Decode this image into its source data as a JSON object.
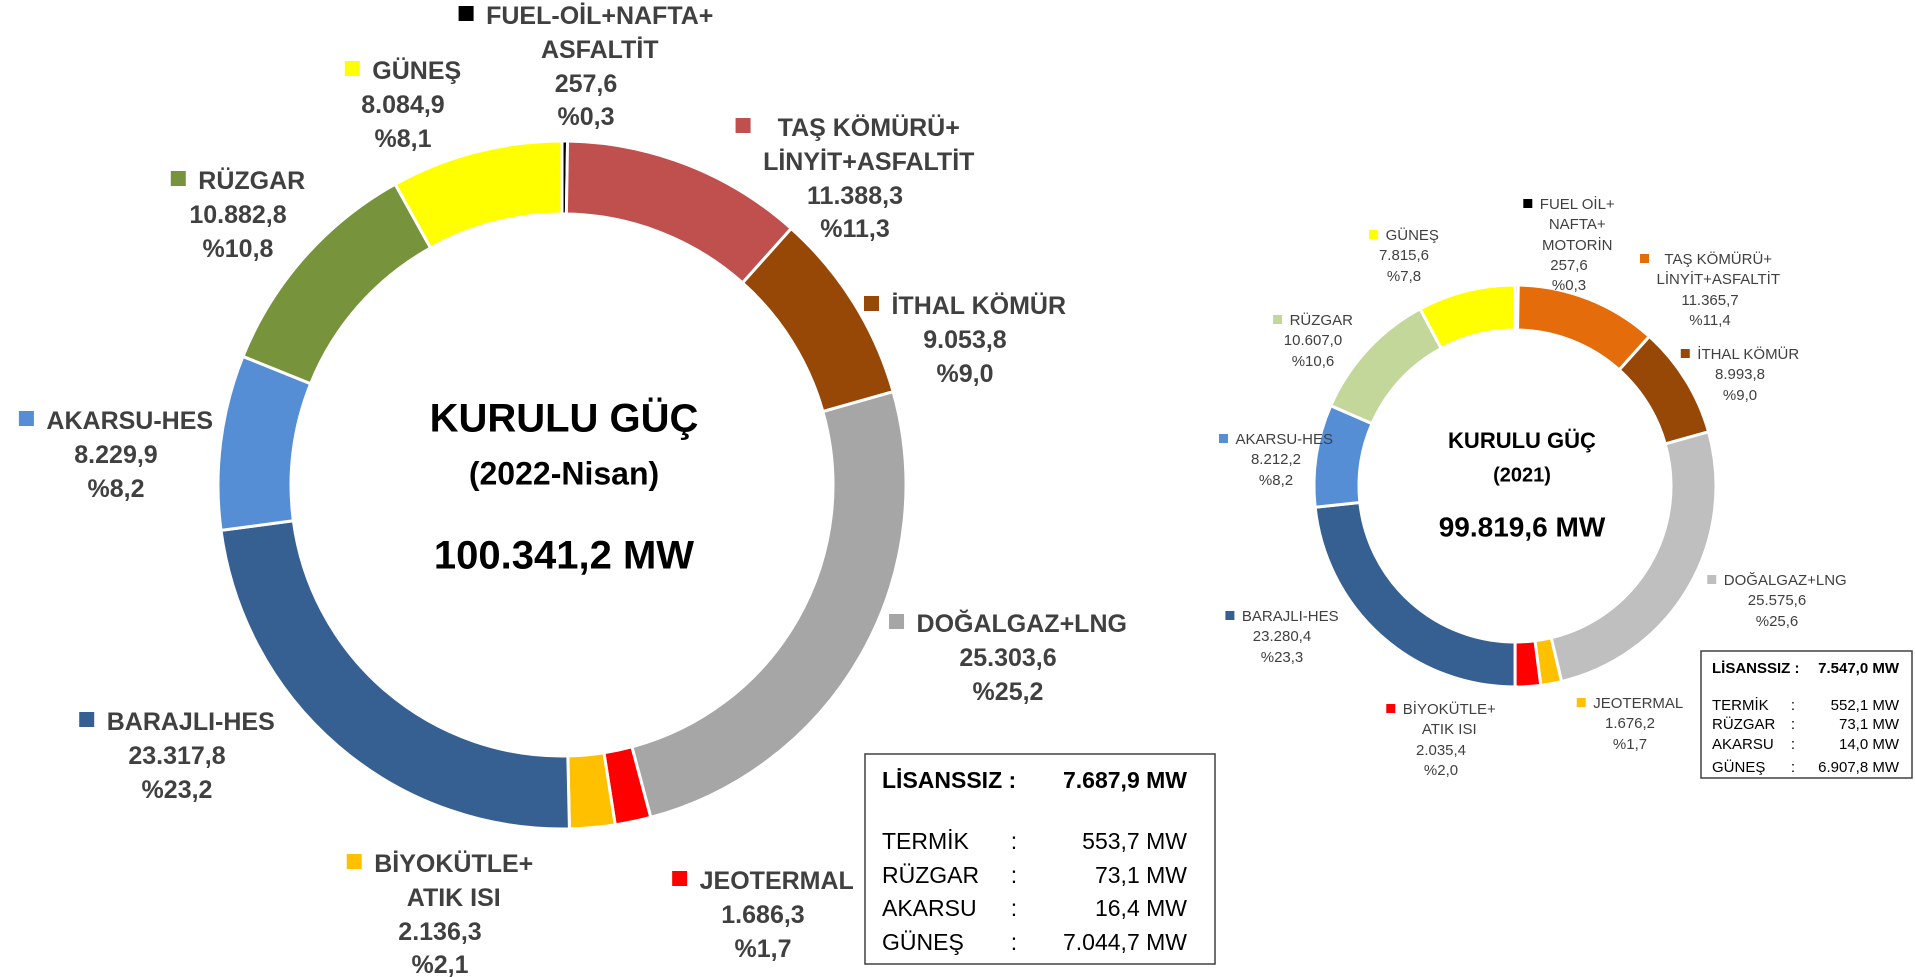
{
  "chart_data": [
    {
      "type": "pie",
      "title": "KURULU GÜÇ",
      "subtitle": "(2022-Nisan)",
      "total": {
        "value": 100341.2,
        "label": "100.341,2 MW"
      },
      "categories": [
        "FUEL-OİL+NAFTA+\nASFALTİT",
        "TAŞ KÖMÜRÜ+\nLİNYİT+ASFALTİT",
        "İTHAL KÖMÜR",
        "DOĞALGAZ+LNG",
        "JEOTERMAL",
        "BİYOKÜTLE+\nATIK ISI",
        "BARAJLI-HES",
        "AKARSU-HES",
        "RÜZGAR",
        "GÜNEŞ"
      ],
      "values": [
        257.6,
        11388.3,
        9053.8,
        25303.6,
        1686.3,
        2136.3,
        23317.8,
        8229.9,
        10882.8,
        8084.9
      ],
      "value_labels": [
        "257,6",
        "11.388,3",
        "9.053,8",
        "25.303,6",
        "1.686,3",
        "2.136,3",
        "23.317,8",
        "8.229,9",
        "10.882,8",
        "8.084,9"
      ],
      "percents": [
        0.3,
        11.3,
        9.0,
        25.2,
        1.7,
        2.1,
        23.2,
        8.2,
        10.8,
        8.1
      ],
      "percent_labels": [
        "%0,3",
        "%11,3",
        "%9,0",
        "%25,2",
        "%1,7",
        "%2,1",
        "%23,2",
        "%8,2",
        "%10,8",
        "%8,1"
      ],
      "colors": [
        "#000000",
        "#c0504d",
        "#974706",
        "#a6a6a6",
        "#ff0000",
        "#ffc000",
        "#366092",
        "#558ed5",
        "#77933c",
        "#ffff00"
      ],
      "table": {
        "header": [
          "LİSANSSIZ :",
          "7.687,9 MW"
        ],
        "rows": [
          [
            "TERMİK",
            ":",
            "553,7 MW"
          ],
          [
            "RÜZGAR",
            ":",
            "73,1 MW"
          ],
          [
            "AKARSU",
            ":",
            "16,4 MW"
          ],
          [
            "GÜNEŞ",
            ":",
            "7.044,7 MW"
          ]
        ]
      }
    },
    {
      "type": "pie",
      "title": "KURULU GÜÇ",
      "subtitle": "(2021)",
      "total": {
        "value": 99819.6,
        "label": "99.819,6 MW"
      },
      "categories": [
        "FUEL OİL+\nNAFTA+\nMOTORİN",
        "TAŞ KÖMÜRÜ+\nLİNYİT+ASFALTİT",
        "İTHAL KÖMÜR",
        "DOĞALGAZ+LNG",
        "JEOTERMAL",
        "BİYOKÜTLE+\nATIK ISI",
        "BARAJLI-HES",
        "AKARSU-HES",
        "RÜZGAR",
        "GÜNEŞ"
      ],
      "values": [
        257.6,
        11365.7,
        8993.8,
        25575.6,
        1676.2,
        2035.4,
        23280.4,
        8212.2,
        10607.0,
        7815.6
      ],
      "value_labels": [
        "257,6",
        "11.365,7",
        "8.993,8",
        "25.575,6",
        "1.676,2",
        "2.035,4",
        "23.280,4",
        "8.212,2",
        "10.607,0",
        "7.815,6"
      ],
      "percents": [
        0.3,
        11.4,
        9.0,
        25.6,
        1.7,
        2.0,
        23.3,
        8.2,
        10.6,
        7.8
      ],
      "percent_labels": [
        "%0,3",
        "%11,4",
        "%9,0",
        "%25,6",
        "%1,7",
        "%2,0",
        "%23,3",
        "%8,2",
        "%10,6",
        "%7,8"
      ],
      "colors": [
        "#000000",
        "#e46c0a",
        "#974706",
        "#bfbfbf",
        "#ffc000",
        "#ff0000",
        "#366092",
        "#558ed5",
        "#c4d79b",
        "#ffff00"
      ],
      "table": {
        "header": [
          "LİSANSSIZ :",
          "7.547,0 MW"
        ],
        "rows": [
          [
            "TERMİK",
            ":",
            "552,1 MW"
          ],
          [
            "RÜZGAR",
            ":",
            "73,1 MW"
          ],
          [
            "AKARSU",
            ":",
            "14,0 MW"
          ],
          [
            "GÜNEŞ",
            ":",
            "6.907,8 MW"
          ]
        ]
      }
    }
  ]
}
